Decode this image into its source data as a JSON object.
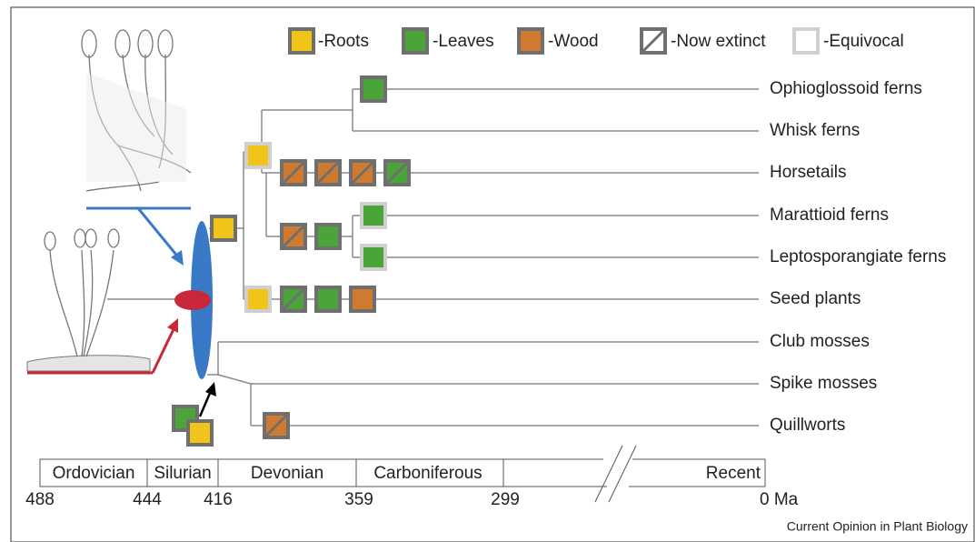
{
  "legend": [
    {
      "label": "-Roots"
    },
    {
      "label": "-Leaves"
    },
    {
      "label": "-Wood"
    },
    {
      "label": "-Now extinct"
    },
    {
      "label": "-Equivocal"
    }
  ],
  "taxa": [
    "Ophioglossoid ferns",
    "Whisk ferns",
    "Horsetails",
    "Marattioid ferns",
    "Leptosporangiate ferns",
    "Seed plants",
    "Club mosses",
    "Spike mosses",
    "Quillworts"
  ],
  "timeline": {
    "periods": [
      "Ordovician",
      "Silurian",
      "Devonian",
      "Carboniferous",
      "Recent"
    ],
    "ages": [
      "488",
      "444",
      "416",
      "359",
      "299",
      "0 Ma"
    ]
  },
  "credit": "Current Opinion in Plant Biology"
}
